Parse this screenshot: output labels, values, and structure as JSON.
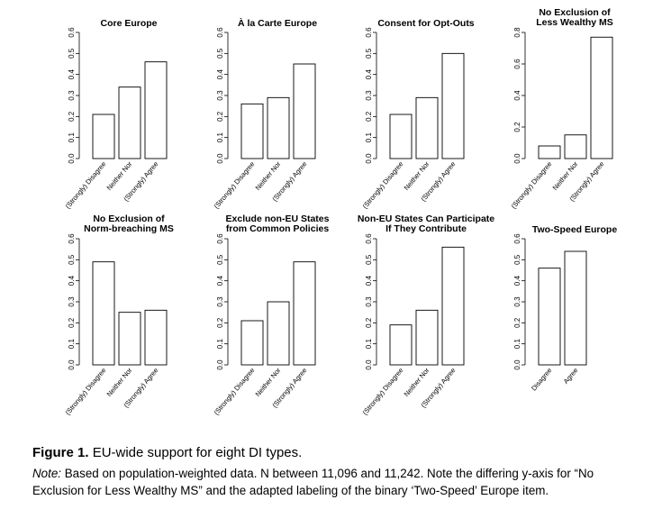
{
  "chart_data": [
    {
      "type": "bar",
      "title": [
        "Core Europe"
      ],
      "categories": [
        "(Strongly) Disagree",
        "Neither Nor",
        "(Strongly) Agree"
      ],
      "values": [
        0.21,
        0.34,
        0.46
      ],
      "ylim": [
        0,
        0.6
      ],
      "yticks": [
        "0.0",
        "0.1",
        "0.2",
        "0.3",
        "0.4",
        "0.5",
        "0.6"
      ],
      "xlabel": "",
      "ylabel": ""
    },
    {
      "type": "bar",
      "title": [
        "À la Carte Europe"
      ],
      "categories": [
        "(Strongly) Disagree",
        "Neither Nor",
        "(Strongly) Agree"
      ],
      "values": [
        0.26,
        0.29,
        0.45
      ],
      "ylim": [
        0,
        0.6
      ],
      "yticks": [
        "0.0",
        "0.1",
        "0.2",
        "0.3",
        "0.4",
        "0.5",
        "0.6"
      ],
      "xlabel": "",
      "ylabel": ""
    },
    {
      "type": "bar",
      "title": [
        "Consent for Opt-Outs"
      ],
      "categories": [
        "(Strongly) Disagree",
        "Neither Nor",
        "(Strongly) Agree"
      ],
      "values": [
        0.21,
        0.29,
        0.5
      ],
      "ylim": [
        0,
        0.6
      ],
      "yticks": [
        "0.0",
        "0.1",
        "0.2",
        "0.3",
        "0.4",
        "0.5",
        "0.6"
      ],
      "xlabel": "",
      "ylabel": ""
    },
    {
      "type": "bar",
      "title": [
        "No Exclusion of",
        "Less Wealthy MS"
      ],
      "categories": [
        "(Strongly) Disagree",
        "Neither Nor",
        "(Strongly) Agree"
      ],
      "values": [
        0.08,
        0.15,
        0.77
      ],
      "ylim": [
        0,
        0.8
      ],
      "yticks": [
        "0.0",
        "0.2",
        "0.4",
        "0.6",
        "0.8"
      ],
      "xlabel": "",
      "ylabel": ""
    },
    {
      "type": "bar",
      "title": [
        "No Exclusion of",
        "Norm-breaching MS"
      ],
      "categories": [
        "(Strongly) Disagree",
        "Neither Nor",
        "(Strongly) Agree"
      ],
      "values": [
        0.49,
        0.25,
        0.26
      ],
      "ylim": [
        0,
        0.6
      ],
      "yticks": [
        "0.0",
        "0.1",
        "0.2",
        "0.3",
        "0.4",
        "0.5",
        "0.6"
      ],
      "xlabel": "",
      "ylabel": ""
    },
    {
      "type": "bar",
      "title": [
        "Exclude non-EU States",
        "from Common Policies"
      ],
      "categories": [
        "(Strongly) Disagree",
        "Neither Nor",
        "(Strongly) Agree"
      ],
      "values": [
        0.21,
        0.3,
        0.49
      ],
      "ylim": [
        0,
        0.6
      ],
      "yticks": [
        "0.0",
        "0.1",
        "0.2",
        "0.3",
        "0.4",
        "0.5",
        "0.6"
      ],
      "xlabel": "",
      "ylabel": ""
    },
    {
      "type": "bar",
      "title": [
        "Non-EU States Can Participate",
        "If They Contribute"
      ],
      "categories": [
        "(Strongly) Disagree",
        "Neither Nor",
        "(Strongly) Agree"
      ],
      "values": [
        0.19,
        0.26,
        0.56
      ],
      "ylim": [
        0,
        0.6
      ],
      "yticks": [
        "0.0",
        "0.1",
        "0.2",
        "0.3",
        "0.4",
        "0.5",
        "0.6"
      ],
      "xlabel": "",
      "ylabel": ""
    },
    {
      "type": "bar",
      "title": [
        "Two-Speed Europe"
      ],
      "categories": [
        "Disagree",
        "Agree"
      ],
      "values": [
        0.46,
        0.54
      ],
      "ylim": [
        0,
        0.6
      ],
      "yticks": [
        "0.0",
        "0.1",
        "0.2",
        "0.3",
        "0.4",
        "0.5",
        "0.6"
      ],
      "xlabel": "",
      "ylabel": ""
    }
  ],
  "caption": {
    "label": "Figure 1.",
    "title": "EU-wide support for eight DI types.",
    "note_label": "Note:",
    "note_text": "Based on population-weighted data. N between 11,096 and 11,242. Note the differing y-axis for “No Exclusion for Less Wealthy MS” and the adapted labeling of the binary ‘Two-Speed’ Europe item."
  }
}
